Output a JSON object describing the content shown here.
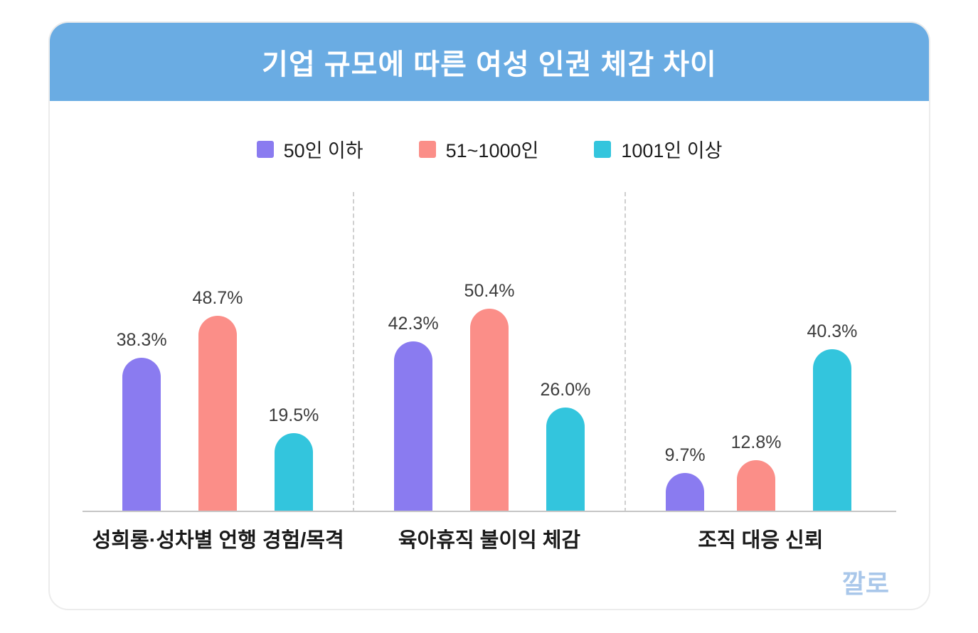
{
  "title": "기업 규모에 따른 여성 인권 체감 차이",
  "watermark": "깔로",
  "colors": {
    "header_bg": "#6aace3",
    "series_purple": "#8a7bf0",
    "series_salmon": "#fb8e88",
    "series_cyan": "#33c5dd",
    "value_label_text": "#3c3c3c",
    "category_text": "#1a1a1a",
    "baseline": "#c6c6c6",
    "separator": "#cfcfcf",
    "watermark_text": "#a9c7ea"
  },
  "chart_data": {
    "type": "bar",
    "title": "기업 규모에 따른 여성 인권 체감 차이",
    "categories": [
      "성희롱·성차별 언행 경험/목격",
      "육아휴직 불이익 체감",
      "조직 대응 신뢰"
    ],
    "series": [
      {
        "name": "50인 이하",
        "color": "#8a7bf0",
        "values": [
          38.3,
          42.3,
          9.7
        ]
      },
      {
        "name": "51~1000인",
        "color": "#fb8e88",
        "values": [
          48.7,
          50.4,
          12.8
        ]
      },
      {
        "name": "1001인 이상",
        "color": "#33c5dd",
        "values": [
          19.5,
          26.0,
          40.3
        ]
      }
    ],
    "value_suffix": "%",
    "xlabel": "",
    "ylabel": "",
    "ylim": [
      0,
      55
    ],
    "grid": false,
    "legend_position": "top",
    "bar_style": "rounded-top"
  }
}
